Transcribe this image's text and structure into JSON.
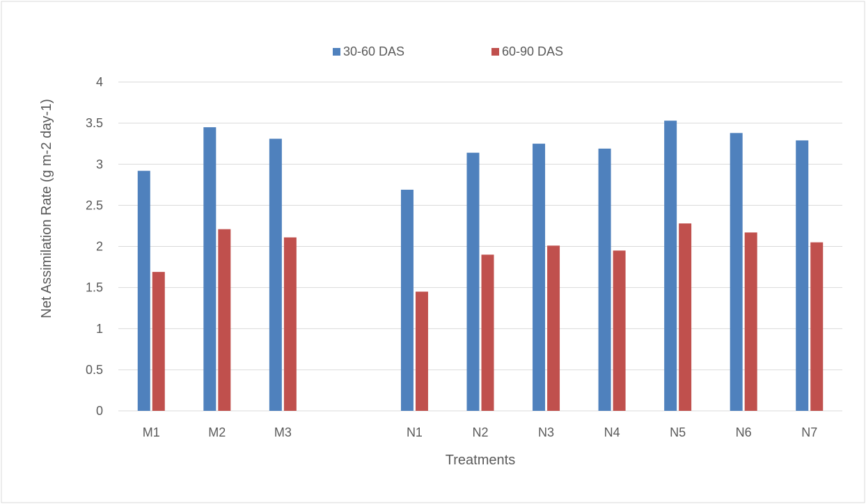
{
  "chart_data": {
    "type": "bar",
    "title": "",
    "xlabel": "Treatments",
    "ylabel": "Net Assimilation Rate (g m-2 day-1)",
    "ylim": [
      0,
      4
    ],
    "yticks": [
      "0",
      "0.5",
      "1",
      "1.5",
      "2",
      "2.5",
      "3",
      "3.5",
      "4"
    ],
    "categories": [
      "M1",
      "M2",
      "M3",
      "",
      "N1",
      "N2",
      "N3",
      "N4",
      "N5",
      "N6",
      "N7"
    ],
    "series": [
      {
        "name": "30-60 DAS",
        "color": "#4F81BD",
        "values": [
          2.92,
          3.45,
          3.31,
          null,
          2.69,
          3.14,
          3.25,
          3.19,
          3.53,
          3.38,
          3.29
        ]
      },
      {
        "name": "60-90 DAS",
        "color": "#C0504D",
        "values": [
          1.69,
          2.21,
          2.11,
          null,
          1.45,
          1.9,
          2.01,
          1.95,
          2.28,
          2.17,
          2.05
        ]
      }
    ],
    "grid": true,
    "legend_position": "top"
  }
}
